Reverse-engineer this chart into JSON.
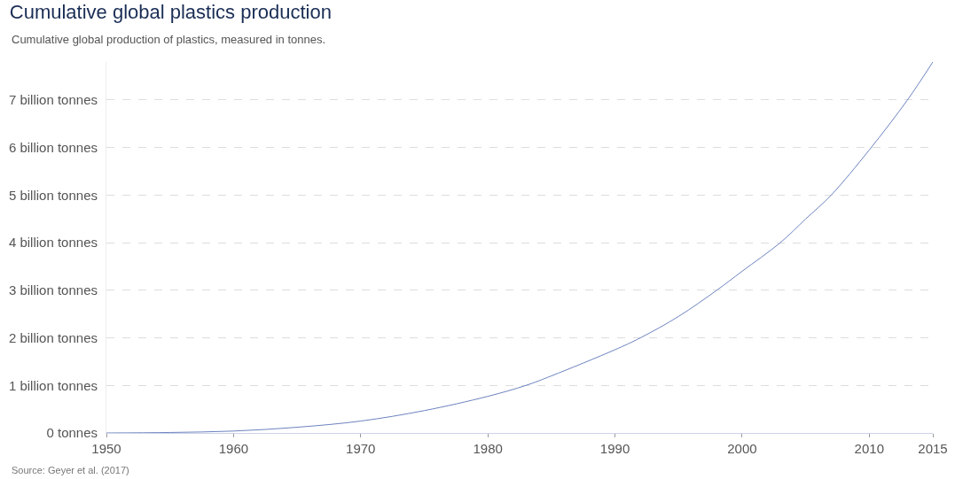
{
  "chart_data": {
    "type": "line",
    "title": "Cumulative global plastics production",
    "subtitle": "Cumulative global production of plastics, measured in tonnes.",
    "annotations": [
      "Source: Geyer et al. (2017)"
    ],
    "x": [
      1950,
      1955,
      1960,
      1965,
      1970,
      1975,
      1980,
      1983,
      1985,
      1990,
      1992,
      1995,
      1998,
      2000,
      2003,
      2005,
      2007,
      2010,
      2013,
      2015
    ],
    "series": [
      {
        "color": "#6d83c0",
        "values": [
          0,
          0.01,
          0.04,
          0.12,
          0.25,
          0.47,
          0.77,
          1.0,
          1.2,
          1.75,
          2.0,
          2.45,
          3.0,
          3.4,
          4.0,
          4.5,
          5.0,
          5.95,
          7.0,
          7.8
        ]
      }
    ],
    "xlim": [
      1950,
      2015
    ],
    "xticks": [
      1950,
      1960,
      1970,
      1980,
      1990,
      2000,
      2010,
      2015
    ],
    "ylim": [
      0,
      7.8
    ],
    "yticks": [
      {
        "value": 0,
        "label": "0 tonnes"
      },
      {
        "value": 1,
        "label": "1 billion tonnes"
      },
      {
        "value": 2,
        "label": "2 billion tonnes"
      },
      {
        "value": 3,
        "label": "3 billion tonnes"
      },
      {
        "value": 4,
        "label": "4 billion tonnes"
      },
      {
        "value": 5,
        "label": "5 billion tonnes"
      },
      {
        "value": 6,
        "label": "6 billion tonnes"
      },
      {
        "value": 7,
        "label": "7 billion tonnes"
      }
    ],
    "grid": "y",
    "marker": "none",
    "line_style": "solid"
  }
}
